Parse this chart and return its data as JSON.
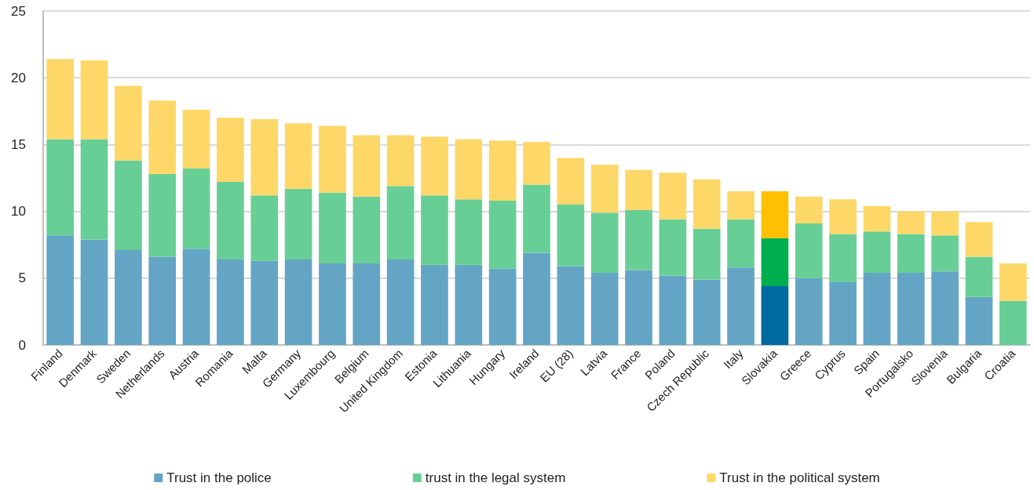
{
  "chart_data": {
    "type": "bar",
    "stacked": true,
    "categories": [
      "Finland",
      "Denmark",
      "Sweden",
      "Netherlands",
      "Austria",
      "Romania",
      "Malta",
      "Germany",
      "Luxembourg",
      "Belgium",
      "United Kingdom",
      "Estonia",
      "Lithuania",
      "Hungary",
      "Ireland",
      "EU (28)",
      "Latvia",
      "France",
      "Poland",
      "Czech Republic",
      "Italy",
      "Slovakia",
      "Greece",
      "Cyprus",
      "Spain",
      "Portugalsko",
      "Slovenia",
      "Bulgaria",
      "Croatia"
    ],
    "series": [
      {
        "name": "Trust in the police",
        "color": "#64a5c6",
        "colors": [
          "#64a5c6",
          "#64a5c6",
          "#64a5c6",
          "#64a5c6",
          "#64a5c6",
          "#64a5c6",
          "#64a5c6",
          "#64a5c6",
          "#64a5c6",
          "#64a5c6",
          "#64a5c6",
          "#64a5c6",
          "#64a5c6",
          "#64a5c6",
          "#64a5c6",
          "#64a5c6",
          "#64a5c6",
          "#64a5c6",
          "#64a5c6",
          "#64a5c6",
          "#64a5c6",
          "#006aa0",
          "#64a5c6",
          "#64a5c6",
          "#64a5c6",
          "#64a5c6",
          "#64a5c6",
          "#64a5c6",
          "#64a5c6"
        ],
        "values": [
          8.2,
          7.9,
          7.1,
          6.6,
          7.2,
          6.4,
          6.3,
          6.4,
          6.1,
          6.1,
          6.4,
          6.0,
          6.0,
          5.7,
          6.9,
          5.9,
          5.4,
          5.6,
          5.2,
          4.9,
          5.8,
          4.4,
          5.0,
          4.7,
          5.4,
          5.4,
          5.5,
          3.6,
          null
        ]
      },
      {
        "name": "trust in the legal system",
        "color": "#67cf96",
        "colors": [
          "#67cf96",
          "#67cf96",
          "#67cf96",
          "#67cf96",
          "#67cf96",
          "#67cf96",
          "#67cf96",
          "#67cf96",
          "#67cf96",
          "#67cf96",
          "#67cf96",
          "#67cf96",
          "#67cf96",
          "#67cf96",
          "#67cf96",
          "#67cf96",
          "#67cf96",
          "#67cf96",
          "#67cf96",
          "#67cf96",
          "#67cf96",
          "#00ae4f",
          "#67cf96",
          "#67cf96",
          "#67cf96",
          "#67cf96",
          "#67cf96",
          "#67cf96",
          "#67cf96"
        ],
        "values": [
          7.2,
          7.5,
          6.7,
          6.2,
          6.0,
          5.8,
          4.9,
          5.3,
          5.3,
          5.0,
          5.5,
          5.2,
          4.9,
          5.1,
          5.1,
          4.6,
          4.5,
          4.5,
          4.2,
          3.8,
          3.6,
          3.6,
          4.1,
          3.6,
          3.1,
          2.9,
          2.7,
          3.0,
          3.3
        ]
      },
      {
        "name": "Trust in the political system",
        "color": "#fdd868",
        "colors": [
          "#fdd868",
          "#fdd868",
          "#fdd868",
          "#fdd868",
          "#fdd868",
          "#fdd868",
          "#fdd868",
          "#fdd868",
          "#fdd868",
          "#fdd868",
          "#fdd868",
          "#fdd868",
          "#fdd868",
          "#fdd868",
          "#fdd868",
          "#fdd868",
          "#fdd868",
          "#fdd868",
          "#fdd868",
          "#fdd868",
          "#fdd868",
          "#fec000",
          "#fdd868",
          "#fdd868",
          "#fdd868",
          "#fdd868",
          "#fdd868",
          "#fdd868",
          "#fdd868"
        ],
        "values": [
          6.0,
          5.9,
          5.6,
          5.5,
          4.4,
          4.8,
          5.7,
          4.9,
          5.0,
          4.6,
          3.8,
          4.4,
          4.5,
          4.5,
          3.2,
          3.5,
          3.6,
          3.0,
          3.5,
          3.7,
          2.1,
          3.5,
          2.0,
          2.6,
          1.9,
          1.7,
          1.8,
          2.6,
          2.8
        ]
      }
    ],
    "ylim": [
      0,
      25
    ],
    "yticks": [
      0,
      5,
      10,
      15,
      20,
      25
    ],
    "grid": "y",
    "legend": "bottom"
  }
}
